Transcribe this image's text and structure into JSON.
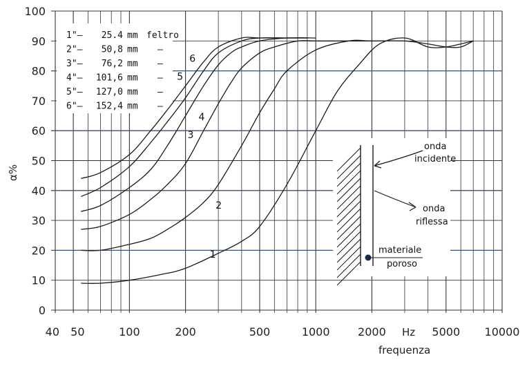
{
  "chart_data": {
    "type": "line",
    "title": "",
    "xlabel": "frequenza",
    "ylabel": "α%",
    "x_unit": "Hz",
    "xscale": "log",
    "xlim": [
      40,
      10000
    ],
    "ylim": [
      0,
      100
    ],
    "grid": true,
    "y_ticks": [
      "0",
      "10",
      "20",
      "30",
      "40",
      "50",
      "60",
      "70",
      "80",
      "90",
      "100"
    ],
    "x_ticks": [
      {
        "value": 40,
        "label": "40"
      },
      {
        "value": 50,
        "label": "50"
      },
      {
        "value": 100,
        "label": "100"
      },
      {
        "value": 200,
        "label": "200"
      },
      {
        "value": 500,
        "label": "500"
      },
      {
        "value": 1000,
        "label": "1000"
      },
      {
        "value": 2000,
        "label": "2000"
      },
      {
        "value": 5000,
        "label": "5000"
      },
      {
        "value": 10000,
        "label": "10000"
      }
    ],
    "legend": {
      "placement": "top-left",
      "entries": [
        {
          "num": "1\"",
          "value": "25.4",
          "unit": "mm",
          "note": "feltro"
        },
        {
          "num": "2\"",
          "value": "50,8",
          "unit": "mm",
          "note": "–"
        },
        {
          "num": "3\"",
          "value": "76,2",
          "unit": "mm",
          "note": "–"
        },
        {
          "num": "4\"",
          "value": "101,6",
          "unit": "mm",
          "note": "–"
        },
        {
          "num": "5\"",
          "value": "127,0",
          "unit": "mm",
          "note": "–"
        },
        {
          "num": "6\"",
          "value": "152,4",
          "unit": "mm",
          "note": "–"
        }
      ]
    },
    "series": [
      {
        "name": "1",
        "x": [
          55,
          70,
          100,
          150,
          200,
          300,
          400,
          500,
          700,
          1000,
          1300,
          1700,
          2200,
          3000,
          4000,
          5000,
          6000,
          7000
        ],
        "y": [
          9,
          9,
          10,
          12,
          14,
          19,
          23,
          28,
          42,
          60,
          73,
          82,
          89,
          91,
          88,
          88,
          89,
          90
        ]
      },
      {
        "name": "2",
        "x": [
          55,
          70,
          100,
          130,
          160,
          200,
          250,
          300,
          400,
          500,
          600,
          700,
          1000,
          1500,
          2000,
          3000,
          4000,
          5000,
          6000,
          7000
        ],
        "y": [
          20,
          20,
          22,
          24,
          27,
          31,
          36,
          42,
          55,
          66,
          74,
          80,
          87,
          90,
          90,
          90,
          89,
          88,
          88,
          90
        ]
      },
      {
        "name": "3",
        "x": [
          55,
          70,
          100,
          130,
          160,
          200,
          250,
          300,
          350,
          400,
          500,
          600,
          800,
          1000,
          1500,
          2000
        ],
        "y": [
          27,
          28,
          32,
          37,
          42,
          49,
          60,
          69,
          76,
          81,
          86,
          88,
          90,
          90,
          90,
          90
        ]
      },
      {
        "name": "4",
        "x": [
          55,
          70,
          100,
          130,
          160,
          200,
          250,
          300,
          350,
          400,
          500,
          700,
          1000
        ],
        "y": [
          33,
          35,
          41,
          47,
          55,
          65,
          75,
          82,
          86,
          88,
          90,
          91,
          91
        ]
      },
      {
        "name": "5",
        "x": [
          55,
          70,
          100,
          130,
          160,
          200,
          250,
          300,
          400,
          500,
          700,
          900
        ],
        "y": [
          38,
          41,
          48,
          56,
          63,
          71,
          80,
          86,
          90,
          91,
          91,
          91
        ]
      },
      {
        "name": "6",
        "x": [
          55,
          70,
          100,
          130,
          160,
          200,
          250,
          300,
          400,
          500,
          700,
          900
        ],
        "y": [
          44,
          46,
          52,
          60,
          67,
          75,
          83,
          88,
          91,
          91,
          91,
          91
        ]
      }
    ],
    "annotations": [
      {
        "text": "onda",
        "text2": "incidente"
      },
      {
        "text": "onda",
        "text2": "riflessa"
      },
      {
        "text": "materiale",
        "text2": "poroso"
      }
    ]
  },
  "colors": {
    "ink": "#1a1a1a",
    "grid_major": "#3a5070",
    "grid": "#333333"
  }
}
